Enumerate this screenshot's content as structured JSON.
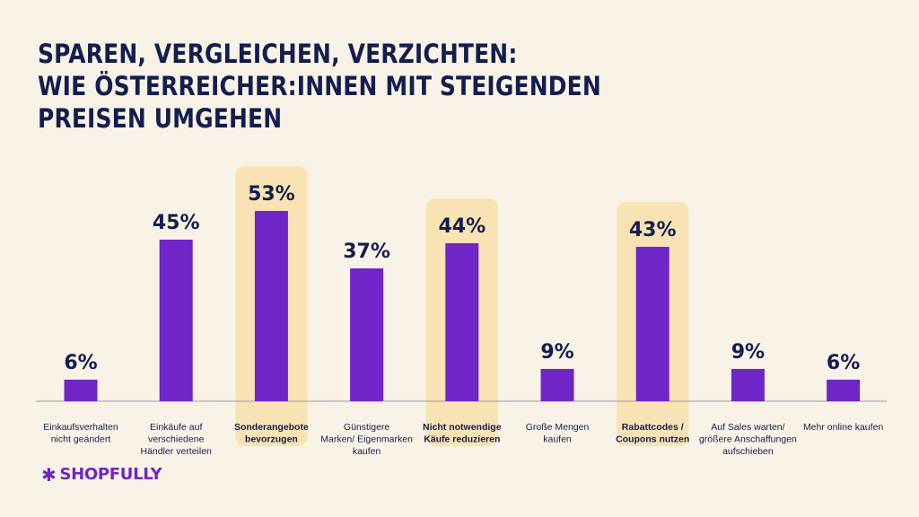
{
  "title_lines": [
    "SPAREN, VERGLEICHEN, VERZICHTEN:",
    "WIE ÖSTERREICHER:INNEN MIT STEIGENDEN",
    "PREISEN UMGEHEN"
  ],
  "logo": {
    "text": "SHOPFULLY",
    "icon": "asterisk-icon"
  },
  "colors": {
    "background": "#f8f3e6",
    "bar": "#6f25c8",
    "highlight": "#f9e3b4",
    "title": "#141d4f",
    "axis": "#9a9aa0"
  },
  "chart_data": {
    "type": "bar",
    "title": "SPAREN, VERGLEICHEN, VERZICHTEN: WIE ÖSTERREICHER:INNEN MIT STEIGENDEN PREISEN UMGEHEN",
    "xlabel": "",
    "ylabel": "",
    "ylim": [
      0,
      60
    ],
    "grid": false,
    "legend": "none",
    "categories": [
      [
        "Einkaufsverhalten",
        "nicht geändert"
      ],
      [
        "Einkäufe auf",
        "verschiedene",
        "Händler verteilen"
      ],
      [
        "Sonderangebote",
        "bevorzugen"
      ],
      [
        "Günstigere",
        "Marken/ Eigenmarken",
        "kaufen"
      ],
      [
        "Nicht notwendige",
        "Käufe reduzieren"
      ],
      [
        "Große Mengen",
        "kaufen"
      ],
      [
        "Rabattcodes /",
        "Coupons nutzen"
      ],
      [
        "Auf Sales warten/",
        "größere Anschaffungen",
        "aufschieben"
      ],
      [
        "Mehr online kaufen"
      ]
    ],
    "values": [
      6,
      45,
      53,
      37,
      44,
      9,
      43,
      9,
      6
    ],
    "value_labels": [
      "6%",
      "45%",
      "53%",
      "37%",
      "44%",
      "9%",
      "43%",
      "9%",
      "6%"
    ],
    "highlighted": [
      false,
      false,
      true,
      false,
      true,
      false,
      true,
      false,
      false
    ]
  }
}
